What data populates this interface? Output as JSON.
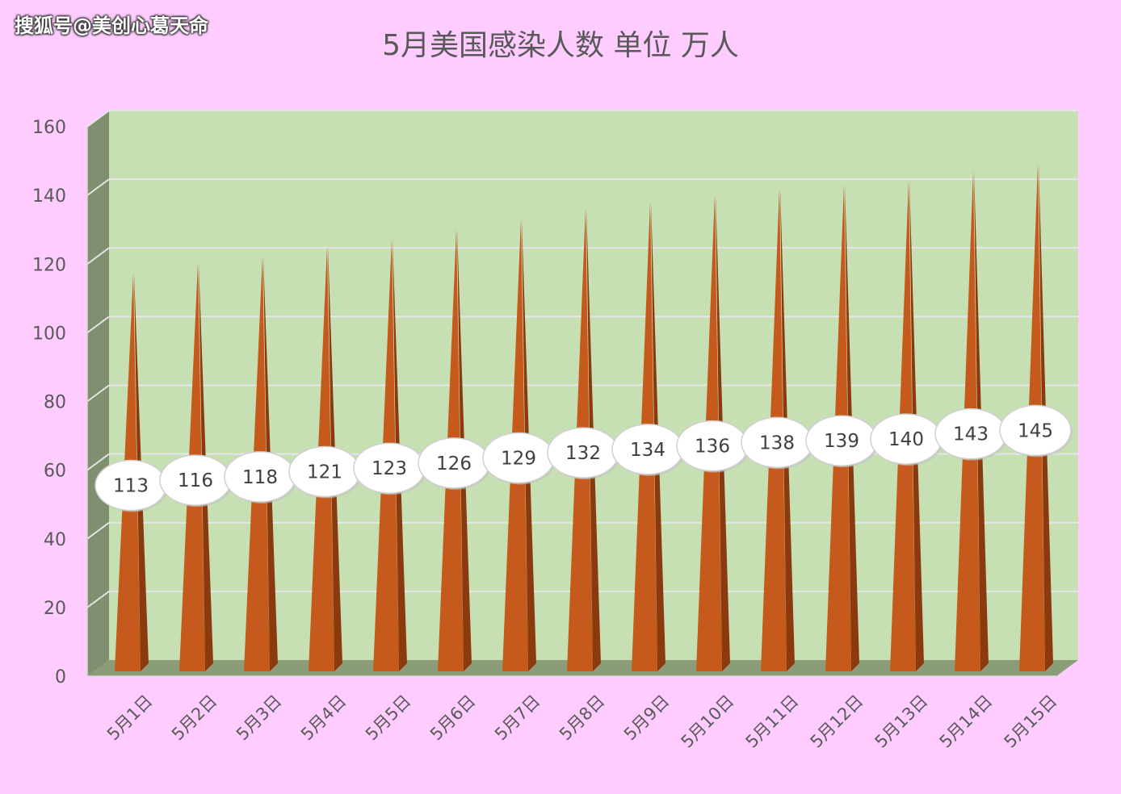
{
  "watermark": "搜狐号@美创心葛天命",
  "chart_data": {
    "type": "bar",
    "title": "5月美国感染人数 单位 万人",
    "categories": [
      "5月1日",
      "5月2日",
      "5月3日",
      "5月4日",
      "5月5日",
      "5月6日",
      "5月7日",
      "5月8日",
      "5月9日",
      "5月10日",
      "5月11日",
      "5月12日",
      "5月13日",
      "5月14日",
      "5月15日"
    ],
    "values": [
      113,
      116,
      118,
      121,
      123,
      126,
      129,
      132,
      134,
      136,
      138,
      139,
      140,
      143,
      145
    ],
    "ylim": [
      0,
      160
    ],
    "yticks": [
      0,
      20,
      40,
      60,
      80,
      100,
      120,
      140,
      160
    ],
    "grid": true,
    "colors": {
      "background": "#ffccff",
      "plot_area": "#c6e0b4",
      "side_wall": "#7f8f6f",
      "floor": "#8a9d78",
      "bar": "#c55a1c",
      "bar_shade": "#8b3a10",
      "gridline": "#e6e6e6",
      "label_bubble": "#ffffff"
    }
  }
}
